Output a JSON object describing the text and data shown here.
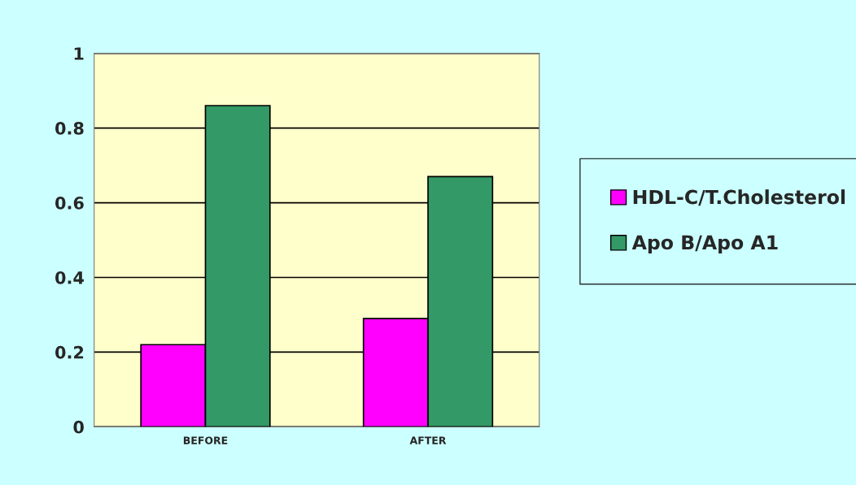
{
  "chart_data": {
    "type": "bar",
    "categories": [
      "BEFORE",
      "AFTER"
    ],
    "series": [
      {
        "name": "HDL-C/T.Cholesterol",
        "color": "#ff00ff",
        "values": [
          0.22,
          0.29
        ]
      },
      {
        "name": "Apo B/Apo A1",
        "color": "#339966",
        "values": [
          0.86,
          0.67
        ]
      }
    ],
    "ylim": [
      0,
      1
    ],
    "yticks": [
      0,
      0.2,
      0.4,
      0.6,
      0.8,
      1
    ],
    "grid": "y",
    "legend": "right"
  }
}
